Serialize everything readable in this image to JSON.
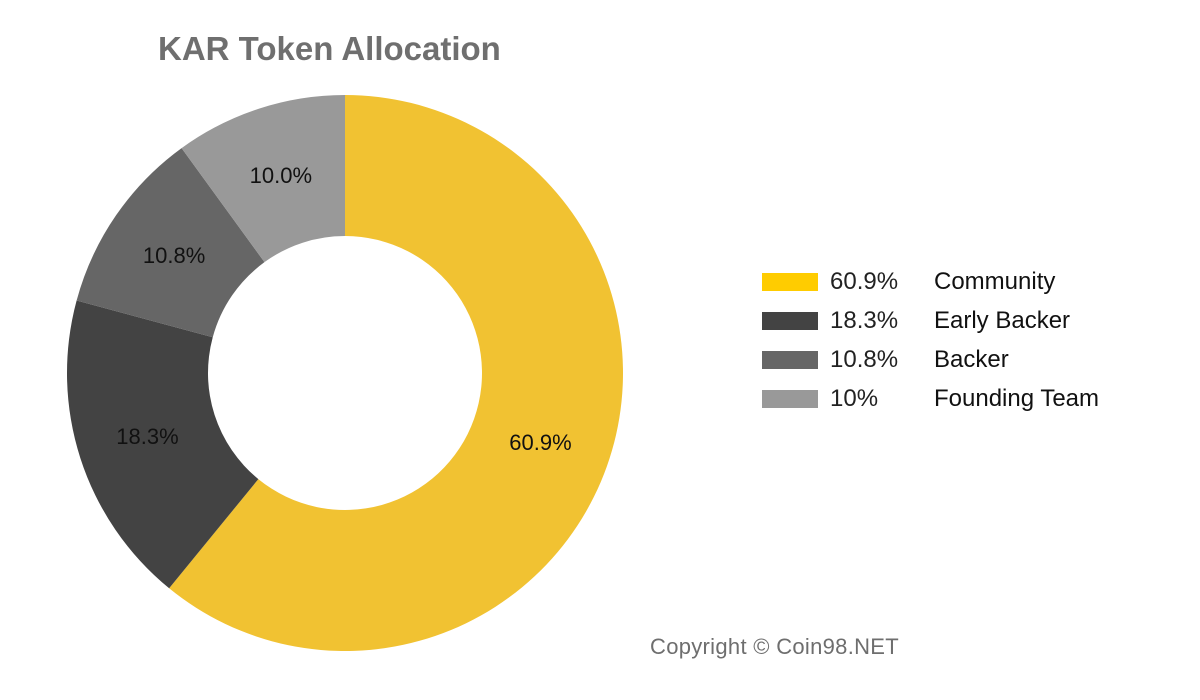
{
  "chart_data": {
    "type": "pie",
    "title": "KAR Token Allocation",
    "categories": [
      "Community",
      "Early Backer",
      "Backer",
      "Founding Team"
    ],
    "values": [
      60.9,
      18.3,
      10.8,
      10.0
    ],
    "slice_labels": [
      "60.9%",
      "18.3%",
      "10.8%",
      "10.0%"
    ],
    "colors": [
      "#f1c232",
      "#434343",
      "#666666",
      "#999999"
    ],
    "legend": {
      "placement": "right",
      "entries": [
        {
          "value": "60.9%",
          "label": "Community",
          "color": "#ffcc00"
        },
        {
          "value": "18.3%",
          "label": "Early Backer",
          "color": "#434343"
        },
        {
          "value": "10.8%",
          "label": "Backer",
          "color": "#666666"
        },
        {
          "value": "10%",
          "label": "Founding Team",
          "color": "#999999"
        }
      ]
    },
    "donut": true
  },
  "copyright": "Copyright © Coin98.NET"
}
